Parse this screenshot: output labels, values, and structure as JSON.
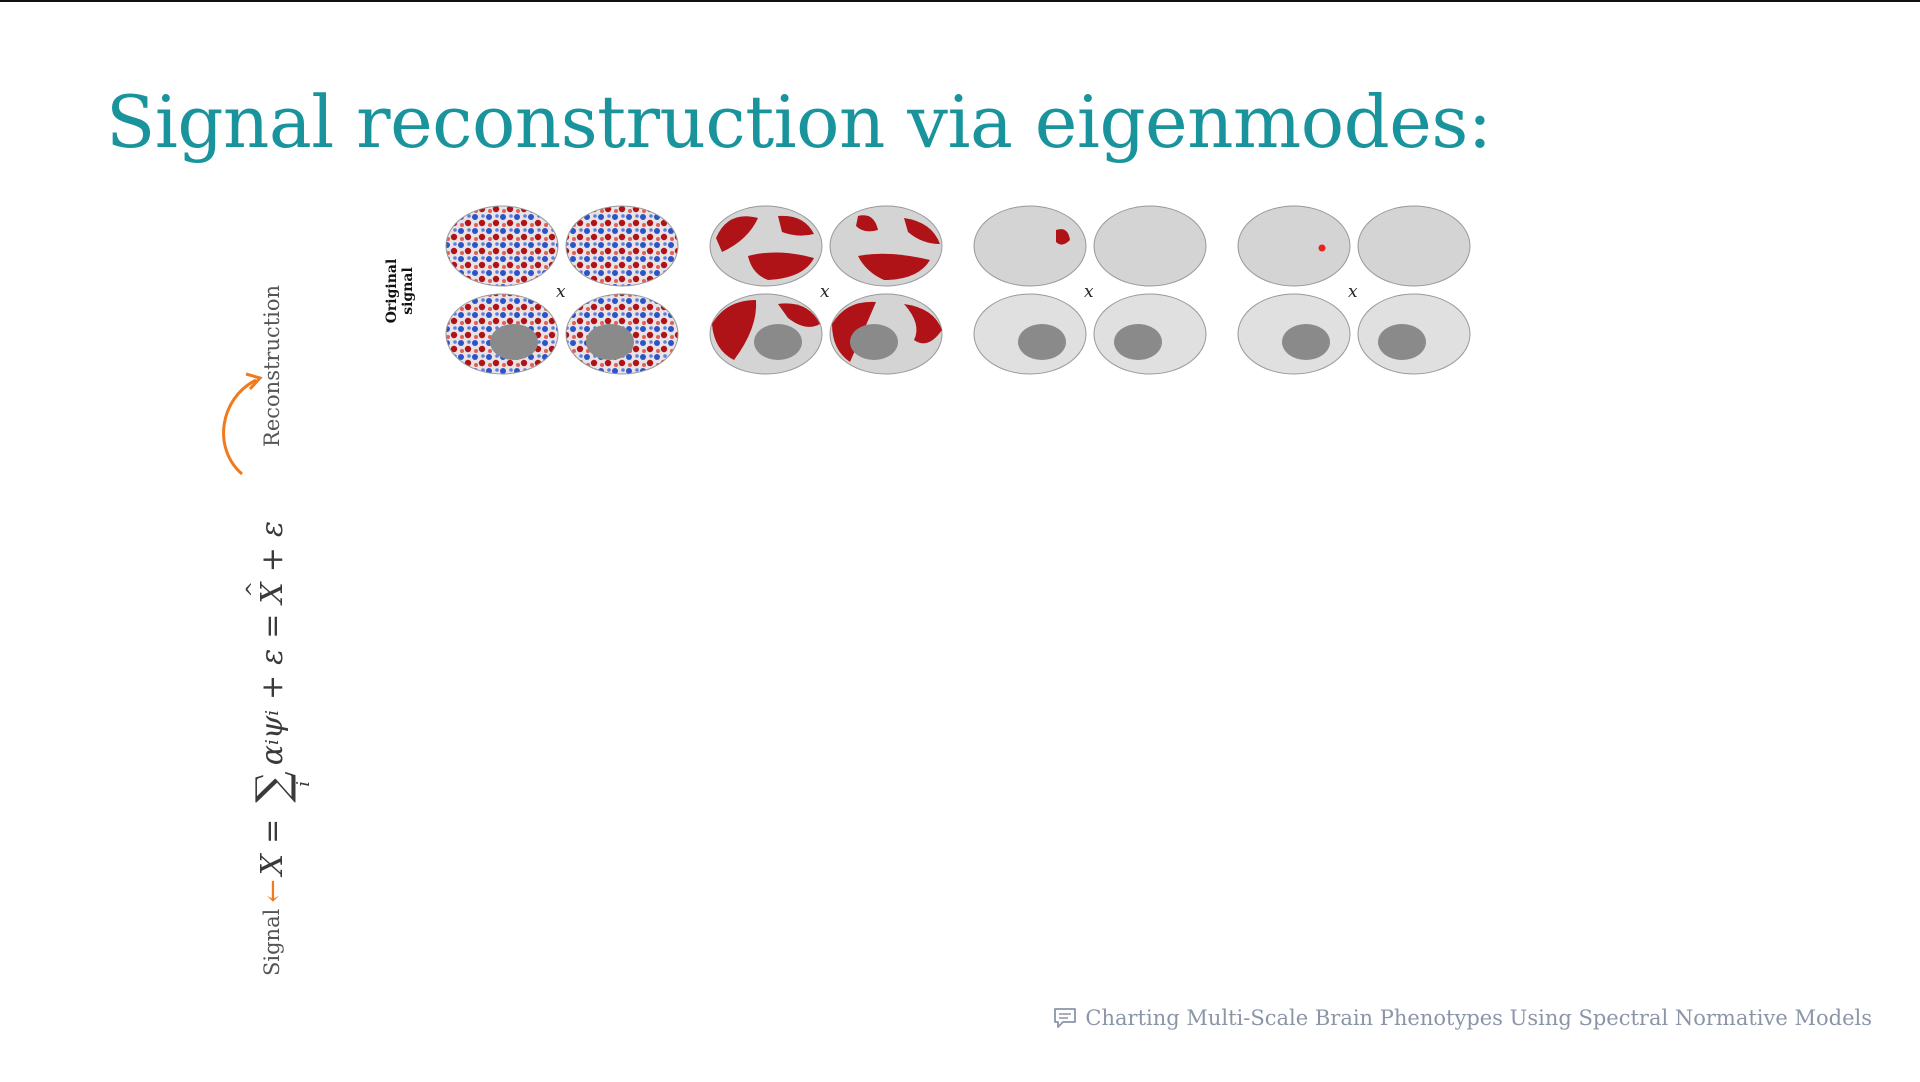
{
  "slide": {
    "title": "Signal reconstruction via eigenmodes:"
  },
  "equation": {
    "signal_label": "Signal",
    "reconstruction_label": "Reconstruction",
    "lhs": "X",
    "equals": "=",
    "sum_subscript": "i",
    "term_alpha": "α",
    "term_psi": "ψ",
    "index": "i",
    "plus": "+",
    "epsilon": "ε",
    "xhat": "X",
    "arrow_color": "#f07a1c"
  },
  "figure": {
    "row_label": "Original\nsignal",
    "panels": [
      {
        "multiplier": "x",
        "style": "noise"
      },
      {
        "multiplier": "x",
        "style": "large-patches"
      },
      {
        "multiplier": "x",
        "style": "single-patch"
      },
      {
        "multiplier": "x",
        "style": "point"
      }
    ],
    "colors": {
      "red": "#b01317",
      "blue": "#2a55c9",
      "cortex": "#d4d4d4",
      "medial": "#8a8a8a"
    }
  },
  "footer": {
    "icon": "comment-icon",
    "text": "Charting Multi-Scale Brain Phenotypes Using Spectral Normative Models"
  },
  "colors": {
    "title": "#1a949c",
    "footer": "#8b95a8"
  }
}
